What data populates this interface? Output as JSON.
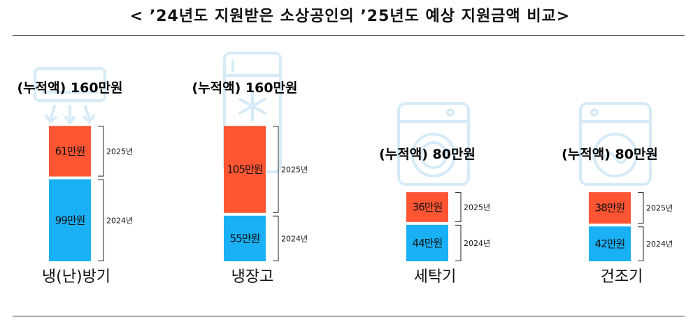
{
  "title": "< ’24년도 지원받은 소상공인의 ’25년도 예상 지원금액 비교>",
  "colors": {
    "y2025": "#ff5533",
    "y2024": "#1ab0f5",
    "ghost_icon": "#d6ebf7"
  },
  "chart_data": {
    "type": "bar",
    "stacked": true,
    "unit": "만원",
    "categories": [
      "냉(난)방기",
      "냉장고",
      "세탁기",
      "건조기"
    ],
    "category_icons": [
      "air-conditioner-icon",
      "refrigerator-icon",
      "washing-machine-icon",
      "dryer-icon"
    ],
    "series": [
      {
        "name": "2025년",
        "values": [
          61,
          105,
          36,
          38
        ],
        "value_labels": [
          "61만원",
          "105만원",
          "36만원",
          "38만원"
        ]
      },
      {
        "name": "2024년",
        "values": [
          99,
          55,
          44,
          42
        ],
        "value_labels": [
          "99만원",
          "55만원",
          "44만원",
          "42만원"
        ]
      }
    ],
    "totals": [
      160,
      160,
      80,
      80
    ],
    "total_labels": [
      "(누적액) 160만원",
      "(누적액) 160만원",
      "(누적액) 80만원",
      "(누적액) 80만원"
    ],
    "ylim": [
      0,
      160
    ],
    "grid": false,
    "legend": "none"
  }
}
